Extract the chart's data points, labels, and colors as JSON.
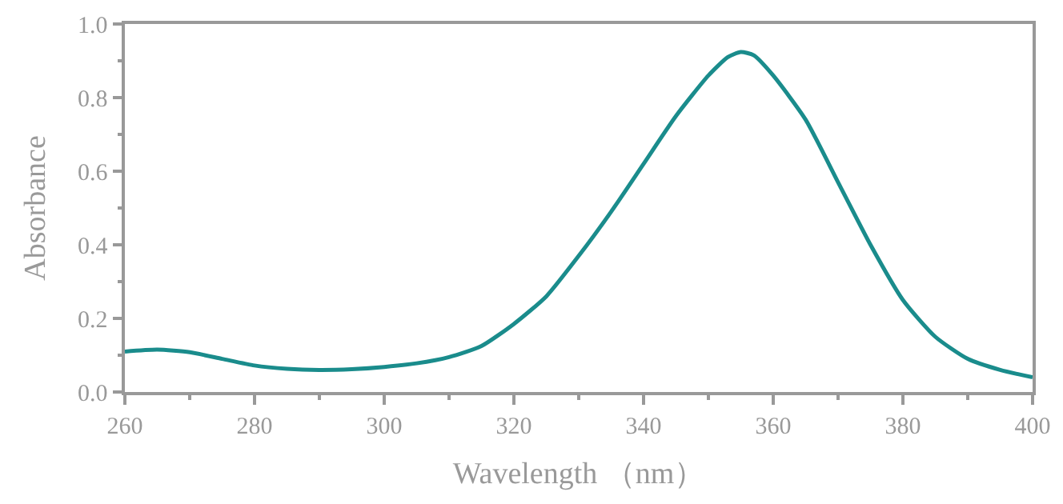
{
  "chart_data": {
    "type": "line",
    "xlabel": "Wavelength （nm）",
    "ylabel": "Absorbance",
    "x": [
      260,
      265,
      270,
      275,
      280,
      285,
      290,
      295,
      300,
      305,
      310,
      315,
      320,
      325,
      330,
      335,
      340,
      345,
      350,
      353,
      355,
      357,
      360,
      365,
      370,
      375,
      380,
      385,
      390,
      395,
      400
    ],
    "series": [
      {
        "color": "#1a8c8c",
        "values": [
          0.11,
          0.115,
          0.108,
          0.09,
          0.072,
          0.063,
          0.06,
          0.062,
          0.068,
          0.078,
          0.095,
          0.125,
          0.185,
          0.26,
          0.37,
          0.49,
          0.62,
          0.75,
          0.86,
          0.91,
          0.924,
          0.915,
          0.86,
          0.74,
          0.57,
          0.4,
          0.25,
          0.15,
          0.09,
          0.06,
          0.04
        ]
      }
    ],
    "xlim": [
      260,
      400
    ],
    "xticks": [
      260,
      280,
      300,
      320,
      340,
      360,
      380,
      400
    ],
    "ylim": [
      0,
      1.0
    ],
    "yticks": [
      {
        "value": 0,
        "label": "0.0"
      },
      0.2,
      0.4,
      0.6,
      0.8,
      {
        "value": 1.0,
        "label": "1.0"
      }
    ],
    "marker": "none",
    "line_style": "solid"
  }
}
